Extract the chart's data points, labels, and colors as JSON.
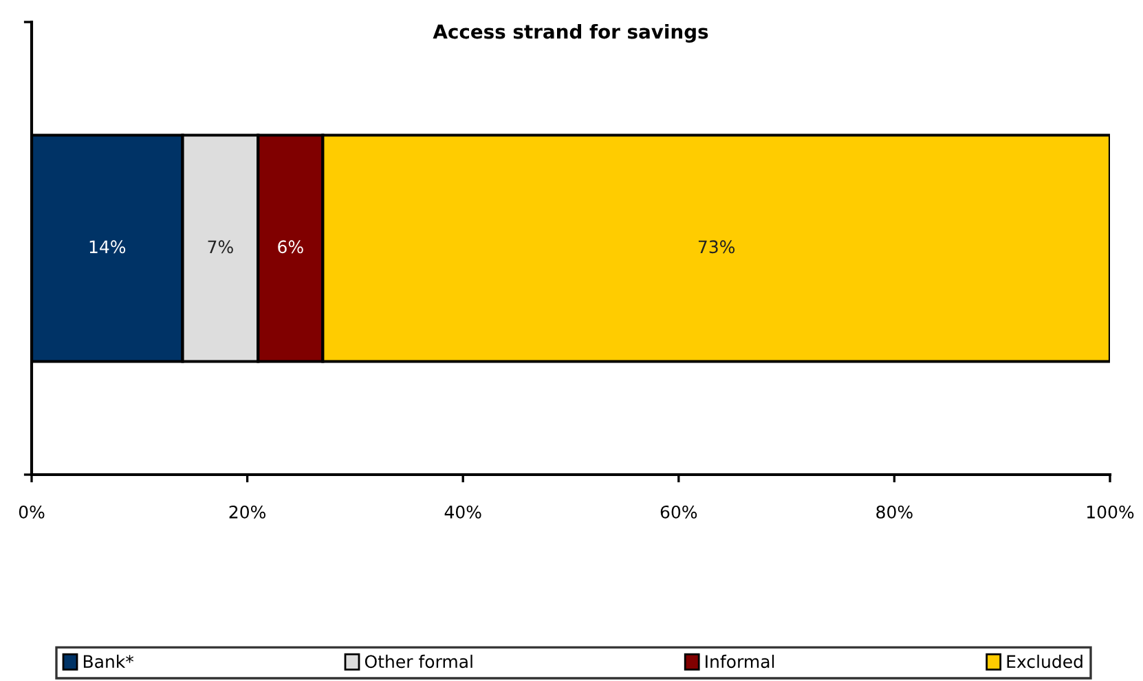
{
  "chart_data": {
    "type": "bar",
    "orientation": "horizontal",
    "stacked": true,
    "title": "Access strand for savings",
    "categories": [
      null
    ],
    "series": [
      {
        "name": "Bank*",
        "color": "#003366",
        "values": [
          14
        ],
        "value_labels": [
          "14%"
        ]
      },
      {
        "name": "Other formal",
        "color": "#dddddd",
        "values": [
          7
        ],
        "value_labels": [
          "7%"
        ]
      },
      {
        "name": "Informal",
        "color": "#800000",
        "values": [
          6
        ],
        "value_labels": [
          "6%"
        ]
      },
      {
        "name": "Excluded",
        "color": "#ffcc00",
        "values": [
          73
        ],
        "value_labels": [
          "73%"
        ]
      }
    ],
    "xlim": [
      0,
      100
    ],
    "xticks": [
      {
        "value": 0,
        "label": "0%"
      },
      {
        "value": 20,
        "label": "20%"
      },
      {
        "value": 40,
        "label": "40%"
      },
      {
        "value": 60,
        "label": "60%"
      },
      {
        "value": 80,
        "label": "80%"
      },
      {
        "value": 100,
        "label": "100%"
      }
    ],
    "legend": "bottom"
  }
}
